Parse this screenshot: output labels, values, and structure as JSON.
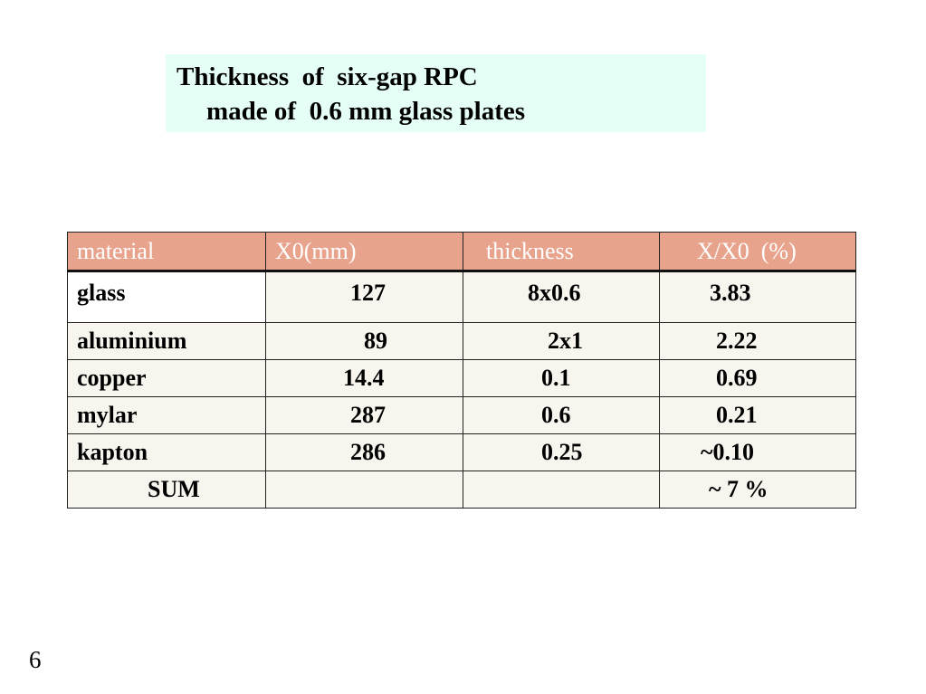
{
  "title": {
    "line1": "Thickness  of  six-gap RPC",
    "line2": "made of  0.6 mm glass plates"
  },
  "table": {
    "headers": [
      "material",
      "X0(mm)",
      "thickness",
      "X/X0  (%)"
    ],
    "rows": [
      {
        "material": "glass",
        "x0": "127",
        "thickness": "8x0.6",
        "ratio": "3.83"
      },
      {
        "material": "aluminium",
        "x0": "89",
        "thickness": "2x1",
        "ratio": "2.22"
      },
      {
        "material": "copper",
        "x0": "14.4",
        "thickness": "0.1",
        "ratio": "0.69"
      },
      {
        "material": "mylar",
        "x0": "287",
        "thickness": "0.6",
        "ratio": "0.21"
      },
      {
        "material": "kapton",
        "x0": "286",
        "thickness": "0.25",
        "ratio": "~0.10"
      },
      {
        "material": "SUM",
        "x0": "",
        "thickness": "",
        "ratio": "~ 7 %"
      }
    ]
  },
  "colors": {
    "title_background": "#e6fff6",
    "header_background": "#e8a38c",
    "header_text": "#ffffff",
    "cell_background": "#f7f5ee"
  },
  "page_number": "6"
}
